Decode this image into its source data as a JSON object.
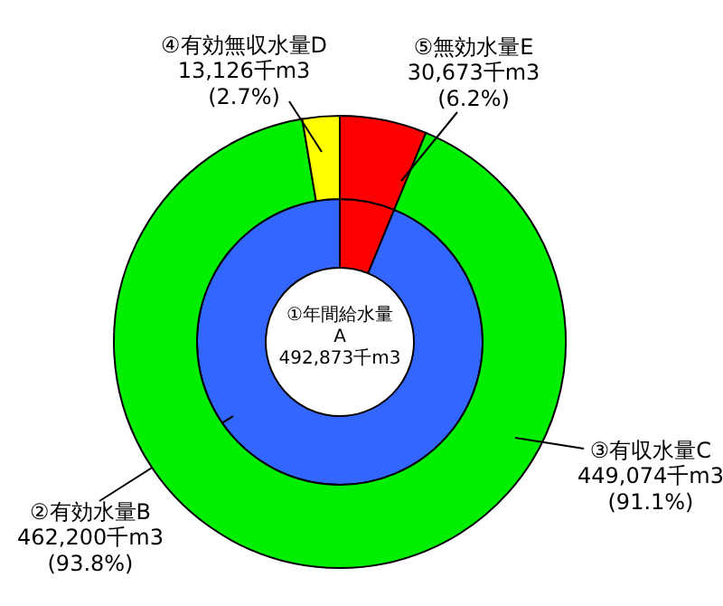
{
  "chart_data": [
    {
      "type": "donut",
      "categories": [
        null,
        "②有効水量B"
      ],
      "values": [
        30673,
        462200
      ],
      "colors": [
        "#ff0000",
        "#3366ff"
      ],
      "value_labels": [
        null,
        "462,200千m3\n(93.8%)"
      ],
      "annotations": [
        "①年間給水量\nA\n492,873千m3"
      ]
    },
    {
      "type": "donut",
      "categories": [
        "⑤無効水量E",
        "③有収水量C",
        "④有効無収水量D"
      ],
      "values": [
        30673,
        449074,
        13126
      ],
      "colors": [
        "#ff0000",
        "#00ee00",
        "#ffff00"
      ],
      "value_labels": [
        "30,673千m3\n(6.2%)",
        "449,074千m3\n(91.1%)",
        "13,126千m3\n(2.7%)"
      ]
    }
  ]
}
